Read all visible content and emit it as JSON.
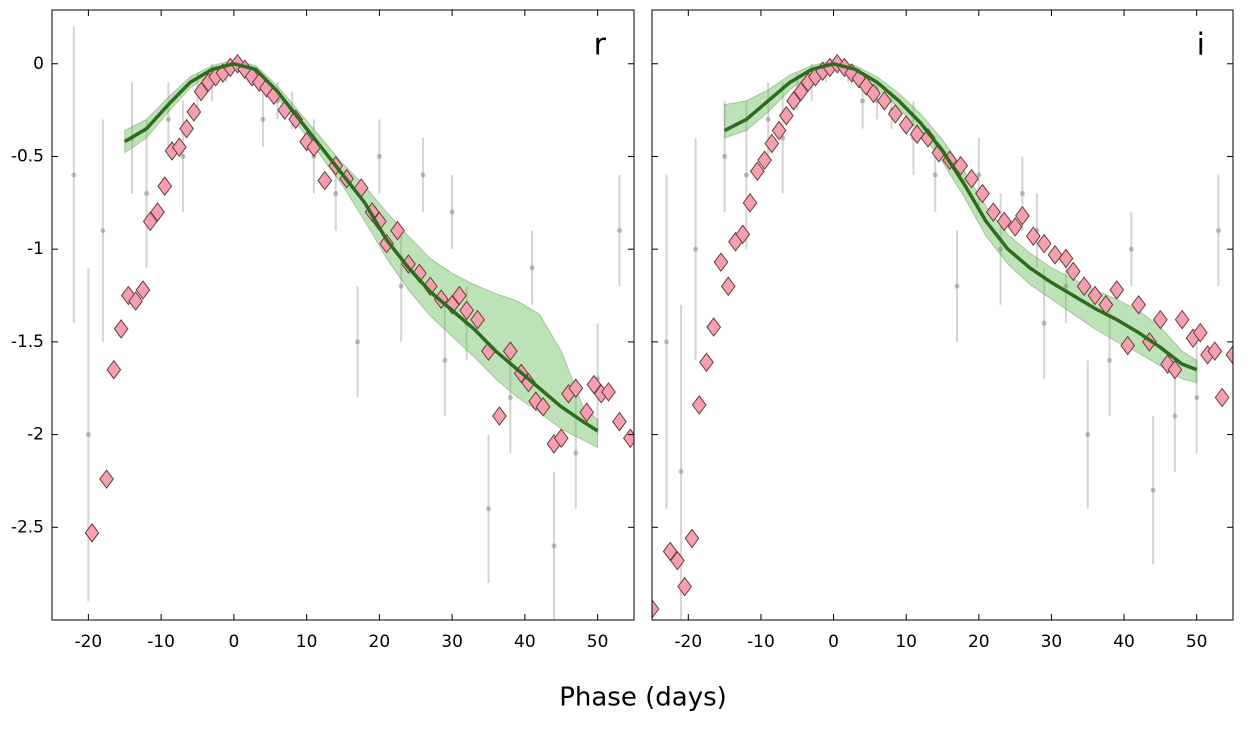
{
  "xlabel": "Phase (days)",
  "chart_data": [
    {
      "type": "scatter",
      "title": "r",
      "xlim": [
        -25,
        55
      ],
      "ylim": [
        -3,
        0.29
      ],
      "xticks": [
        -20,
        -10,
        0,
        10,
        20,
        30,
        40,
        50
      ],
      "yticks": [
        0,
        -0.5,
        -1,
        -1.5,
        -2,
        -2.5
      ],
      "yticklabels": true,
      "observations": {
        "color": "#555555",
        "x": [
          -22,
          -18,
          -14,
          -12,
          -9,
          -7,
          -5,
          -3,
          -1,
          2,
          4,
          6,
          8,
          11,
          14,
          17,
          20,
          23,
          26,
          29,
          32,
          35,
          38,
          41,
          44,
          47,
          50,
          53,
          -20,
          30
        ],
        "y": [
          -0.6,
          -0.9,
          -0.4,
          -0.7,
          -0.3,
          -0.5,
          -0.15,
          -0.1,
          -0.05,
          -0.05,
          -0.3,
          -0.2,
          -0.25,
          -0.5,
          -0.7,
          -1.5,
          -0.5,
          -1.2,
          -0.6,
          -1.6,
          -1.4,
          -2.4,
          -1.8,
          -1.1,
          -2.6,
          -2.1,
          -1.7,
          -0.9,
          -2.0,
          -0.8
        ],
        "yerr": [
          0.8,
          0.6,
          0.3,
          0.4,
          0.2,
          0.3,
          0.1,
          0.1,
          0.05,
          0.05,
          0.15,
          0.1,
          0.1,
          0.2,
          0.2,
          0.3,
          0.2,
          0.3,
          0.2,
          0.3,
          0.2,
          0.4,
          0.3,
          0.2,
          0.4,
          0.3,
          0.3,
          0.3,
          0.9,
          0.2
        ]
      },
      "diamonds": {
        "color": "#f4a0b0",
        "x": [
          -19.5,
          -17.5,
          -16.5,
          -15.5,
          -14.5,
          -13.5,
          -12.5,
          -11.5,
          -10.5,
          -9.5,
          -8.5,
          -7.5,
          -6.5,
          -5.5,
          -4.5,
          -3.5,
          -2.5,
          -1.5,
          -0.5,
          0.5,
          1.5,
          2.5,
          3.5,
          4.5,
          5.5,
          7,
          8.5,
          10,
          11,
          12.5,
          14,
          15.5,
          17.5,
          19,
          20,
          21,
          22.5,
          24,
          25.5,
          27,
          28.5,
          30,
          31,
          32,
          33.5,
          35,
          36.5,
          38,
          39.5,
          40.5,
          41.5,
          42.5,
          44,
          45,
          46,
          47,
          48.5,
          49.5,
          50.5,
          51.5,
          53,
          54.5
        ],
        "y": [
          -2.53,
          -2.24,
          -1.65,
          -1.43,
          -1.25,
          -1.28,
          -1.22,
          -0.85,
          -0.8,
          -0.66,
          -0.47,
          -0.45,
          -0.35,
          -0.26,
          -0.15,
          -0.1,
          -0.07,
          -0.05,
          -0.02,
          0,
          -0.03,
          -0.07,
          -0.1,
          -0.13,
          -0.17,
          -0.25,
          -0.3,
          -0.42,
          -0.45,
          -0.63,
          -0.55,
          -0.62,
          -0.67,
          -0.8,
          -0.85,
          -0.97,
          -0.9,
          -1.08,
          -1.13,
          -1.2,
          -1.27,
          -1.3,
          -1.25,
          -1.33,
          -1.38,
          -1.55,
          -1.9,
          -1.55,
          -1.67,
          -1.72,
          -1.82,
          -1.85,
          -2.05,
          -2.02,
          -1.78,
          -1.75,
          -1.88,
          -1.73,
          -1.78,
          -1.77,
          -1.93,
          -2.02
        ]
      },
      "fit": {
        "color": "#2e6b1e",
        "band_color": "#6fbf5f",
        "x": [
          -15,
          -12,
          -9,
          -6,
          -3,
          0,
          3,
          6,
          9,
          12,
          15,
          18,
          21,
          24,
          27,
          30,
          33,
          36,
          39,
          42,
          45,
          48,
          50
        ],
        "values": [
          -0.42,
          -0.35,
          -0.22,
          -0.1,
          -0.03,
          0,
          -0.03,
          -0.15,
          -0.3,
          -0.45,
          -0.6,
          -0.75,
          -0.95,
          -1.1,
          -1.23,
          -1.33,
          -1.43,
          -1.55,
          -1.65,
          -1.75,
          -1.85,
          -1.93,
          -1.98
        ],
        "upper": [
          -0.36,
          -0.3,
          -0.18,
          -0.07,
          -0.01,
          0.02,
          -0.01,
          -0.12,
          -0.26,
          -0.4,
          -0.54,
          -0.66,
          -0.8,
          -0.93,
          -1.05,
          -1.13,
          -1.19,
          -1.24,
          -1.28,
          -1.35,
          -1.55,
          -1.85,
          -1.92
        ],
        "lower": [
          -0.48,
          -0.4,
          -0.26,
          -0.13,
          -0.05,
          -0.02,
          -0.05,
          -0.18,
          -0.34,
          -0.5,
          -0.66,
          -0.85,
          -1.05,
          -1.22,
          -1.36,
          -1.47,
          -1.58,
          -1.7,
          -1.8,
          -1.88,
          -1.97,
          -2.03,
          -2.07
        ]
      }
    },
    {
      "type": "scatter",
      "title": "i",
      "xlim": [
        -25,
        55
      ],
      "ylim": [
        -3,
        0.29
      ],
      "xticks": [
        -20,
        -10,
        0,
        10,
        20,
        30,
        40,
        50
      ],
      "yticks": [
        0,
        -0.5,
        -1,
        -1.5,
        -2,
        -2.5
      ],
      "yticklabels": false,
      "observations": {
        "color": "#555555",
        "x": [
          -23,
          -19,
          -15,
          -12,
          -9,
          -7,
          -5,
          -3,
          -1,
          2,
          4,
          6,
          8,
          11,
          14,
          17,
          20,
          23,
          26,
          29,
          32,
          35,
          38,
          41,
          44,
          47,
          50,
          53,
          -21,
          28
        ],
        "y": [
          -1.5,
          -1.0,
          -0.5,
          -0.6,
          -0.3,
          -0.4,
          -0.15,
          -0.1,
          -0.05,
          -0.05,
          -0.2,
          -0.2,
          -0.25,
          -0.4,
          -0.6,
          -1.2,
          -0.6,
          -1.0,
          -0.7,
          -1.4,
          -1.2,
          -2.0,
          -1.6,
          -1.0,
          -2.3,
          -1.9,
          -1.8,
          -0.9,
          -2.2,
          -0.9
        ],
        "yerr": [
          0.9,
          0.6,
          0.3,
          0.4,
          0.2,
          0.3,
          0.1,
          0.1,
          0.05,
          0.05,
          0.15,
          0.1,
          0.1,
          0.2,
          0.2,
          0.3,
          0.2,
          0.3,
          0.2,
          0.3,
          0.2,
          0.4,
          0.3,
          0.2,
          0.4,
          0.3,
          0.3,
          0.3,
          0.9,
          0.2
        ]
      },
      "diamonds": {
        "color": "#f4a0b0",
        "x": [
          -25,
          -22.5,
          -21.5,
          -20.5,
          -19.5,
          -18.5,
          -17.5,
          -16.5,
          -15.5,
          -14.5,
          -13.5,
          -12.5,
          -11.5,
          -10.5,
          -9.5,
          -8.5,
          -7.5,
          -6.5,
          -5.5,
          -4.5,
          -3.5,
          -2.5,
          -1.5,
          -0.5,
          0.5,
          1.5,
          2.5,
          3.5,
          4.5,
          5.5,
          7,
          8.5,
          10,
          11.5,
          13,
          14.5,
          16,
          17.5,
          19,
          20.5,
          22,
          23.5,
          25,
          26,
          27.5,
          29,
          30.5,
          32,
          33,
          34.5,
          36,
          37.5,
          39,
          40.5,
          42,
          43.5,
          45,
          46,
          47,
          48,
          49.5,
          50.5,
          51.5,
          52.5,
          53.5,
          55
        ],
        "y": [
          -2.94,
          -2.63,
          -2.68,
          -2.82,
          -2.56,
          -1.84,
          -1.61,
          -1.42,
          -1.07,
          -1.2,
          -0.96,
          -0.92,
          -0.75,
          -0.58,
          -0.52,
          -0.43,
          -0.36,
          -0.28,
          -0.2,
          -0.15,
          -0.1,
          -0.07,
          -0.04,
          -0.02,
          0,
          -0.02,
          -0.05,
          -0.08,
          -0.12,
          -0.16,
          -0.2,
          -0.27,
          -0.33,
          -0.38,
          -0.4,
          -0.48,
          -0.52,
          -0.55,
          -0.62,
          -0.7,
          -0.8,
          -0.85,
          -0.88,
          -0.82,
          -0.93,
          -0.97,
          -1.03,
          -1.05,
          -1.12,
          -1.2,
          -1.25,
          -1.3,
          -1.22,
          -1.52,
          -1.3,
          -1.5,
          -1.38,
          -1.62,
          -1.65,
          -1.38,
          -1.48,
          -1.45,
          -1.57,
          -1.55,
          -1.8,
          -1.57
        ]
      },
      "fit": {
        "color": "#2e6b1e",
        "band_color": "#6fbf5f",
        "x": [
          -15,
          -12,
          -9,
          -6,
          -3,
          0,
          3,
          6,
          9,
          12,
          15,
          18,
          21,
          24,
          27,
          30,
          33,
          36,
          39,
          42,
          45,
          48,
          50
        ],
        "values": [
          -0.36,
          -0.3,
          -0.2,
          -0.1,
          -0.03,
          0,
          -0.03,
          -0.1,
          -0.2,
          -0.32,
          -0.47,
          -0.65,
          -0.85,
          -1.0,
          -1.1,
          -1.18,
          -1.25,
          -1.32,
          -1.38,
          -1.45,
          -1.53,
          -1.62,
          -1.65
        ],
        "upper": [
          -0.22,
          -0.2,
          -0.14,
          -0.06,
          -0.01,
          0.02,
          -0.01,
          -0.07,
          -0.16,
          -0.27,
          -0.41,
          -0.58,
          -0.77,
          -0.92,
          -1.02,
          -1.1,
          -1.16,
          -1.22,
          -1.27,
          -1.33,
          -1.42,
          -1.55,
          -1.6
        ],
        "lower": [
          -0.4,
          -0.36,
          -0.26,
          -0.14,
          -0.05,
          -0.02,
          -0.05,
          -0.13,
          -0.24,
          -0.37,
          -0.53,
          -0.72,
          -0.93,
          -1.08,
          -1.19,
          -1.27,
          -1.35,
          -1.43,
          -1.5,
          -1.56,
          -1.63,
          -1.7,
          -1.72
        ]
      }
    }
  ]
}
